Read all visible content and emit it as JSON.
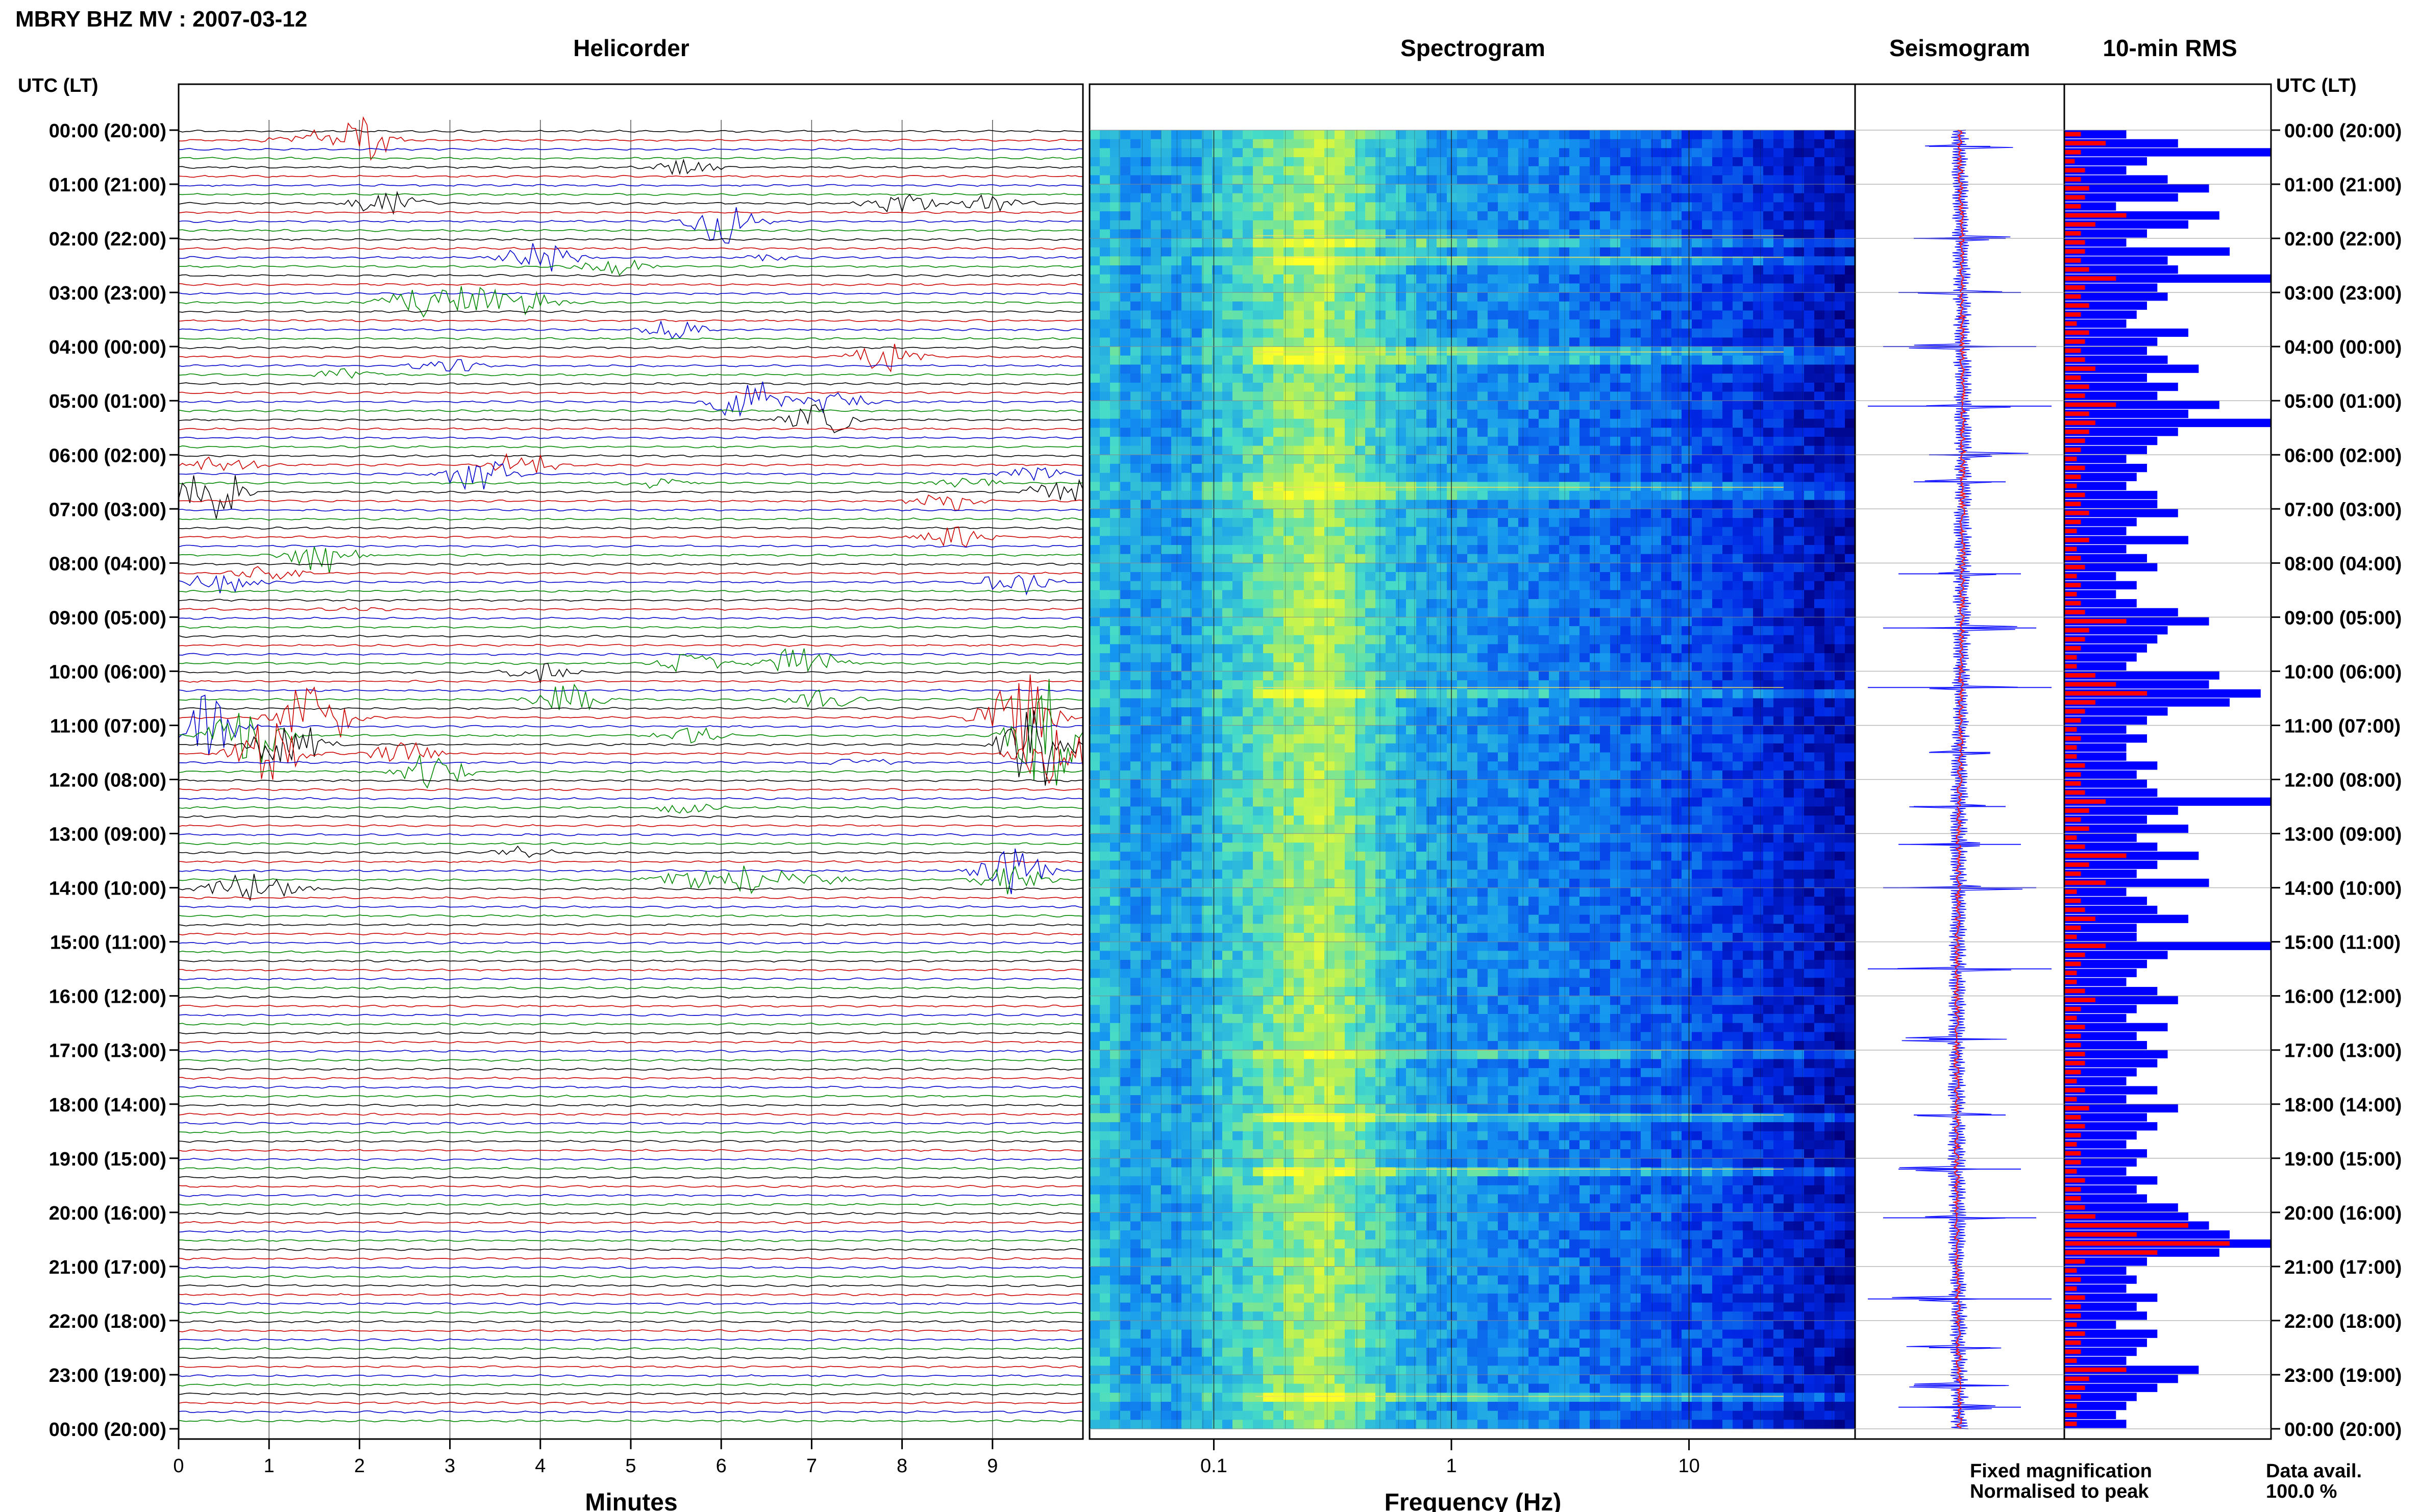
{
  "header": {
    "title": "MBRY BHZ MV : 2007-03-12"
  },
  "panels": {
    "helicorder_title": "Helicorder",
    "spectrogram_title": "Spectrogram",
    "seismogram_title": "Seismogram",
    "rms_title": "10-min RMS"
  },
  "axes": {
    "left_header": "UTC (LT)",
    "right_header": "UTC (LT)",
    "minutes_label": "Minutes",
    "frequency_label": "Frequency (Hz)",
    "minute_ticks": [
      "0",
      "1",
      "2",
      "3",
      "4",
      "5",
      "6",
      "7",
      "8",
      "9"
    ],
    "frequency_ticks": [
      "0.1",
      "1",
      "10"
    ]
  },
  "legend": {
    "fixed": "Fixed magnification",
    "normalised": "Normalised to peak",
    "fixed_color": "#1a1aff",
    "normalised_color": "#ff1a1a"
  },
  "data_availability": {
    "label": "Data avail.",
    "value": "100.0 %"
  },
  "time_labels": [
    "00:00 (20:00)",
    "01:00 (21:00)",
    "02:00 (22:00)",
    "03:00 (23:00)",
    "04:00 (00:00)",
    "05:00 (01:00)",
    "06:00 (02:00)",
    "07:00 (03:00)",
    "08:00 (04:00)",
    "09:00 (05:00)",
    "10:00 (06:00)",
    "11:00 (07:00)",
    "12:00 (08:00)",
    "13:00 (09:00)",
    "14:00 (10:00)",
    "15:00 (11:00)",
    "16:00 (12:00)",
    "17:00 (13:00)",
    "18:00 (14:00)",
    "19:00 (15:00)",
    "20:00 (16:00)",
    "21:00 (17:00)",
    "22:00 (18:00)",
    "23:00 (19:00)",
    "00:00 (20:00)"
  ],
  "colors": {
    "trace_cycle": [
      "#000000",
      "#cc0000",
      "#0000cc",
      "#008800"
    ],
    "spectrogram_low": "#00007a",
    "spectrogram_high": "#ffff20"
  },
  "chart_data": [
    {
      "type": "line",
      "title": "Helicorder",
      "xlabel": "Minutes",
      "xlim": [
        0,
        10
      ],
      "rows_per_hour": 6,
      "row_minutes": 10,
      "row_color_cycle": [
        "black",
        "red",
        "blue",
        "green"
      ],
      "events": [
        {
          "row": 1,
          "minute": 2.0,
          "amp": 3.0
        },
        {
          "row": 1,
          "minute": 1.4,
          "amp": 1.2
        },
        {
          "row": 4,
          "minute": 5.6,
          "amp": 1.0
        },
        {
          "row": 8,
          "minute": 2.3,
          "amp": 1.5
        },
        {
          "row": 8,
          "minute": 9.0,
          "amp": 1.2
        },
        {
          "row": 8,
          "minute": 8.0,
          "amp": 1.5
        },
        {
          "row": 10,
          "minute": 6.0,
          "amp": 3.0
        },
        {
          "row": 14,
          "minute": 4.0,
          "amp": 2.0
        },
        {
          "row": 14,
          "minute": 6.5,
          "amp": 0.5
        },
        {
          "row": 15,
          "minute": 4.8,
          "amp": 1.2
        },
        {
          "row": 19,
          "minute": 3.2,
          "amp": 2.2
        },
        {
          "row": 19,
          "minute": 2.6,
          "amp": 2.2
        },
        {
          "row": 19,
          "minute": 3.8,
          "amp": 1.5
        },
        {
          "row": 22,
          "minute": 5.5,
          "amp": 1.2
        },
        {
          "row": 25,
          "minute": 7.8,
          "amp": 2.0
        },
        {
          "row": 26,
          "minute": 3.0,
          "amp": 1.0
        },
        {
          "row": 27,
          "minute": 1.8,
          "amp": 0.8
        },
        {
          "row": 30,
          "minute": 6.3,
          "amp": 3.0
        },
        {
          "row": 30,
          "minute": 7.3,
          "amp": 1.5
        },
        {
          "row": 32,
          "minute": 7.1,
          "amp": 2.0
        },
        {
          "row": 37,
          "minute": 0.5,
          "amp": 1.3
        },
        {
          "row": 37,
          "minute": 3.8,
          "amp": 1.8
        },
        {
          "row": 38,
          "minute": 3.3,
          "amp": 2.5
        },
        {
          "row": 38,
          "minute": 9.5,
          "amp": 1.0
        },
        {
          "row": 39,
          "minute": 5.3,
          "amp": 0.6
        },
        {
          "row": 39,
          "minute": 8.7,
          "amp": 0.8
        },
        {
          "row": 40,
          "minute": 0.4,
          "amp": 3.5
        },
        {
          "row": 40,
          "minute": 9.8,
          "amp": 2.0
        },
        {
          "row": 41,
          "minute": 8.5,
          "amp": 1.2
        },
        {
          "row": 45,
          "minute": 8.6,
          "amp": 1.5
        },
        {
          "row": 47,
          "minute": 1.6,
          "amp": 2.5
        },
        {
          "row": 49,
          "minute": 1.0,
          "amp": 1.0
        },
        {
          "row": 50,
          "minute": 0.5,
          "amp": 1.5
        },
        {
          "row": 50,
          "minute": 9.3,
          "amp": 1.8
        },
        {
          "row": 53,
          "minute": 2.0,
          "amp": 0.5
        },
        {
          "row": 59,
          "minute": 5.7,
          "amp": 1.3
        },
        {
          "row": 59,
          "minute": 6.9,
          "amp": 2.5
        },
        {
          "row": 60,
          "minute": 4.0,
          "amp": 1.2
        },
        {
          "row": 63,
          "minute": 4.3,
          "amp": 2.0
        },
        {
          "row": 63,
          "minute": 7.1,
          "amp": 1.3
        },
        {
          "row": 65,
          "minute": 1.5,
          "amp": 5.0
        },
        {
          "row": 65,
          "minute": 9.3,
          "amp": 6.0
        },
        {
          "row": 66,
          "minute": 0.3,
          "amp": 4.0
        },
        {
          "row": 67,
          "minute": 0.8,
          "amp": 5.5
        },
        {
          "row": 67,
          "minute": 5.7,
          "amp": 1.0
        },
        {
          "row": 67,
          "minute": 9.6,
          "amp": 7.0
        },
        {
          "row": 68,
          "minute": 1.2,
          "amp": 4.0
        },
        {
          "row": 68,
          "minute": 9.5,
          "amp": 6.0
        },
        {
          "row": 69,
          "minute": 1.0,
          "amp": 4.0
        },
        {
          "row": 69,
          "minute": 2.5,
          "amp": 1.5
        },
        {
          "row": 69,
          "minute": 9.7,
          "amp": 5.0
        },
        {
          "row": 70,
          "minute": 7.5,
          "amp": 0.8
        },
        {
          "row": 71,
          "minute": 2.8,
          "amp": 2.5
        },
        {
          "row": 75,
          "minute": 5.6,
          "amp": 0.8
        },
        {
          "row": 80,
          "minute": 3.8,
          "amp": 0.8
        },
        {
          "row": 82,
          "minute": 9.2,
          "amp": 3.0
        },
        {
          "row": 83,
          "minute": 5.6,
          "amp": 1.6
        },
        {
          "row": 83,
          "minute": 6.4,
          "amp": 2.0
        },
        {
          "row": 83,
          "minute": 7.0,
          "amp": 1.0
        },
        {
          "row": 83,
          "minute": 9.2,
          "amp": 2.0
        },
        {
          "row": 84,
          "minute": 0.6,
          "amp": 1.5
        },
        {
          "row": 84,
          "minute": 1.0,
          "amp": 1.8
        }
      ]
    },
    {
      "type": "heatmap",
      "title": "Spectrogram",
      "xlabel": "Frequency (Hz)",
      "x_scale": "log",
      "xlim": [
        0.03,
        50
      ],
      "xticks": [
        0.1,
        1,
        10
      ],
      "peak_band_hz": [
        0.2,
        0.35
      ],
      "bright_bands_hours": [
        1.95,
        2.35,
        4.1,
        6.6,
        10.3,
        17.0,
        18.2,
        19.2,
        23.4
      ]
    },
    {
      "type": "line",
      "title": "Seismogram",
      "series": [
        {
          "name": "Fixed magnification",
          "color": "blue"
        },
        {
          "name": "Normalised to peak",
          "color": "red"
        }
      ],
      "spike_hours": [
        0.3,
        2.0,
        3.0,
        4.0,
        5.1,
        6.0,
        6.5,
        8.2,
        9.2,
        10.3,
        11.5,
        12.5,
        13.2,
        14.0,
        15.5,
        16.8,
        18.2,
        19.2,
        20.1,
        21.6,
        22.5,
        23.2,
        23.6
      ]
    },
    {
      "type": "bar",
      "title": "10-min RMS",
      "orientation": "horizontal",
      "xlim": [
        0,
        1
      ],
      "blue_values": [
        0.3,
        0.55,
        1.0,
        0.4,
        0.3,
        0.5,
        0.7,
        0.55,
        0.25,
        0.75,
        0.6,
        0.4,
        0.3,
        0.8,
        0.5,
        0.55,
        1.0,
        0.45,
        0.5,
        0.4,
        0.35,
        0.3,
        0.6,
        0.45,
        0.4,
        0.5,
        0.65,
        0.4,
        0.55,
        0.45,
        0.75,
        0.6,
        1.0,
        0.55,
        0.45,
        0.4,
        0.3,
        0.4,
        0.35,
        0.3,
        0.45,
        0.45,
        0.55,
        0.35,
        0.3,
        0.6,
        0.3,
        0.4,
        0.45,
        0.25,
        0.35,
        0.25,
        0.35,
        0.55,
        0.7,
        0.5,
        0.45,
        0.4,
        0.35,
        0.3,
        0.75,
        0.7,
        0.95,
        0.8,
        0.5,
        0.4,
        0.3,
        0.4,
        0.3,
        0.3,
        0.45,
        0.35,
        0.4,
        0.45,
        1.0,
        0.55,
        0.4,
        0.6,
        0.35,
        0.45,
        0.65,
        0.45,
        0.35,
        0.7,
        0.3,
        0.4,
        0.45,
        0.6,
        0.35,
        0.35,
        1.0,
        0.5,
        0.4,
        0.35,
        0.3,
        0.45,
        0.55,
        0.35,
        0.3,
        0.5,
        0.35,
        0.4,
        0.5,
        0.45,
        0.35,
        0.3,
        0.45,
        0.3,
        0.55,
        0.4,
        0.45,
        0.35,
        0.3,
        0.4,
        0.35,
        0.3,
        0.45,
        0.35,
        0.4,
        0.55,
        0.6,
        0.7,
        0.8,
        1.0,
        0.75,
        0.4,
        0.3,
        0.35,
        0.3,
        0.45,
        0.35,
        0.4,
        0.25,
        0.45,
        0.4,
        0.35,
        0.3,
        0.65,
        0.55,
        0.45,
        0.35,
        0.3,
        0.25,
        0.3
      ],
      "red_values": [
        0.08,
        0.2,
        0.08,
        0.05,
        0.1,
        0.08,
        0.12,
        0.1,
        0.08,
        0.3,
        0.15,
        0.08,
        0.1,
        0.1,
        0.08,
        0.12,
        0.25,
        0.1,
        0.08,
        0.12,
        0.08,
        0.06,
        0.12,
        0.1,
        0.08,
        0.1,
        0.15,
        0.08,
        0.12,
        0.1,
        0.25,
        0.12,
        0.15,
        0.12,
        0.1,
        0.08,
        0.06,
        0.1,
        0.08,
        0.06,
        0.1,
        0.08,
        0.12,
        0.08,
        0.06,
        0.12,
        0.06,
        0.08,
        0.1,
        0.06,
        0.08,
        0.06,
        0.08,
        0.1,
        0.3,
        0.12,
        0.1,
        0.08,
        0.06,
        0.06,
        0.15,
        0.25,
        0.4,
        0.15,
        0.1,
        0.08,
        0.06,
        0.08,
        0.06,
        0.06,
        0.1,
        0.08,
        0.08,
        0.1,
        0.2,
        0.12,
        0.08,
        0.12,
        0.06,
        0.1,
        0.3,
        0.12,
        0.08,
        0.2,
        0.06,
        0.08,
        0.1,
        0.15,
        0.08,
        0.06,
        0.2,
        0.1,
        0.08,
        0.06,
        0.06,
        0.1,
        0.15,
        0.08,
        0.06,
        0.1,
        0.08,
        0.08,
        0.1,
        0.1,
        0.08,
        0.06,
        0.1,
        0.06,
        0.12,
        0.08,
        0.1,
        0.08,
        0.06,
        0.08,
        0.08,
        0.06,
        0.1,
        0.08,
        0.08,
        0.1,
        0.15,
        0.6,
        0.35,
        0.8,
        0.45,
        0.1,
        0.06,
        0.08,
        0.06,
        0.1,
        0.08,
        0.08,
        0.06,
        0.1,
        0.08,
        0.08,
        0.06,
        0.3,
        0.12,
        0.1,
        0.08,
        0.06,
        0.06,
        0.06
      ]
    }
  ]
}
